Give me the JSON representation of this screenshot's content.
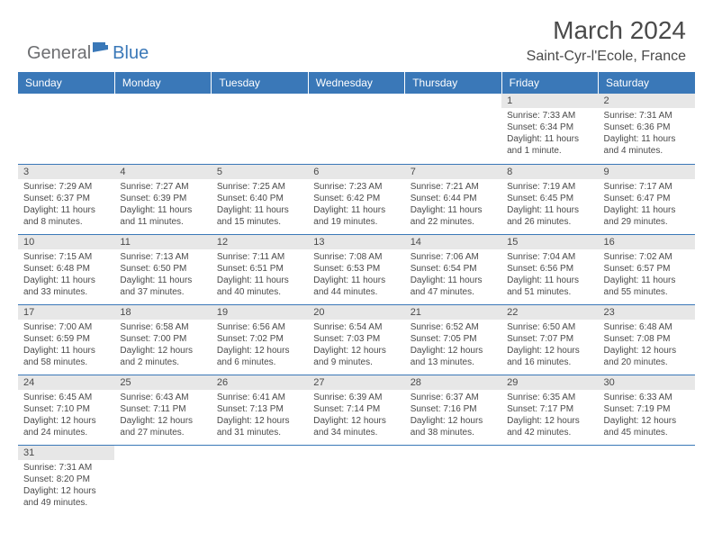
{
  "logo": {
    "part1": "General",
    "part2": "Blue"
  },
  "title": "March 2024",
  "location": "Saint-Cyr-l'Ecole, France",
  "colors": {
    "header_bg": "#3a78b8",
    "header_text": "#ffffff",
    "body_text": "#4a4a4a",
    "date_bg": "#e7e7e7",
    "logo_gray": "#6d6e71",
    "logo_blue": "#3a78b8",
    "page_bg": "#ffffff"
  },
  "day_names": [
    "Sunday",
    "Monday",
    "Tuesday",
    "Wednesday",
    "Thursday",
    "Friday",
    "Saturday"
  ],
  "weeks": [
    [
      {
        "date": "",
        "sunrise": "",
        "sunset": "",
        "daylight": ""
      },
      {
        "date": "",
        "sunrise": "",
        "sunset": "",
        "daylight": ""
      },
      {
        "date": "",
        "sunrise": "",
        "sunset": "",
        "daylight": ""
      },
      {
        "date": "",
        "sunrise": "",
        "sunset": "",
        "daylight": ""
      },
      {
        "date": "",
        "sunrise": "",
        "sunset": "",
        "daylight": ""
      },
      {
        "date": "1",
        "sunrise": "Sunrise: 7:33 AM",
        "sunset": "Sunset: 6:34 PM",
        "daylight": "Daylight: 11 hours and 1 minute."
      },
      {
        "date": "2",
        "sunrise": "Sunrise: 7:31 AM",
        "sunset": "Sunset: 6:36 PM",
        "daylight": "Daylight: 11 hours and 4 minutes."
      }
    ],
    [
      {
        "date": "3",
        "sunrise": "Sunrise: 7:29 AM",
        "sunset": "Sunset: 6:37 PM",
        "daylight": "Daylight: 11 hours and 8 minutes."
      },
      {
        "date": "4",
        "sunrise": "Sunrise: 7:27 AM",
        "sunset": "Sunset: 6:39 PM",
        "daylight": "Daylight: 11 hours and 11 minutes."
      },
      {
        "date": "5",
        "sunrise": "Sunrise: 7:25 AM",
        "sunset": "Sunset: 6:40 PM",
        "daylight": "Daylight: 11 hours and 15 minutes."
      },
      {
        "date": "6",
        "sunrise": "Sunrise: 7:23 AM",
        "sunset": "Sunset: 6:42 PM",
        "daylight": "Daylight: 11 hours and 19 minutes."
      },
      {
        "date": "7",
        "sunrise": "Sunrise: 7:21 AM",
        "sunset": "Sunset: 6:44 PM",
        "daylight": "Daylight: 11 hours and 22 minutes."
      },
      {
        "date": "8",
        "sunrise": "Sunrise: 7:19 AM",
        "sunset": "Sunset: 6:45 PM",
        "daylight": "Daylight: 11 hours and 26 minutes."
      },
      {
        "date": "9",
        "sunrise": "Sunrise: 7:17 AM",
        "sunset": "Sunset: 6:47 PM",
        "daylight": "Daylight: 11 hours and 29 minutes."
      }
    ],
    [
      {
        "date": "10",
        "sunrise": "Sunrise: 7:15 AM",
        "sunset": "Sunset: 6:48 PM",
        "daylight": "Daylight: 11 hours and 33 minutes."
      },
      {
        "date": "11",
        "sunrise": "Sunrise: 7:13 AM",
        "sunset": "Sunset: 6:50 PM",
        "daylight": "Daylight: 11 hours and 37 minutes."
      },
      {
        "date": "12",
        "sunrise": "Sunrise: 7:11 AM",
        "sunset": "Sunset: 6:51 PM",
        "daylight": "Daylight: 11 hours and 40 minutes."
      },
      {
        "date": "13",
        "sunrise": "Sunrise: 7:08 AM",
        "sunset": "Sunset: 6:53 PM",
        "daylight": "Daylight: 11 hours and 44 minutes."
      },
      {
        "date": "14",
        "sunrise": "Sunrise: 7:06 AM",
        "sunset": "Sunset: 6:54 PM",
        "daylight": "Daylight: 11 hours and 47 minutes."
      },
      {
        "date": "15",
        "sunrise": "Sunrise: 7:04 AM",
        "sunset": "Sunset: 6:56 PM",
        "daylight": "Daylight: 11 hours and 51 minutes."
      },
      {
        "date": "16",
        "sunrise": "Sunrise: 7:02 AM",
        "sunset": "Sunset: 6:57 PM",
        "daylight": "Daylight: 11 hours and 55 minutes."
      }
    ],
    [
      {
        "date": "17",
        "sunrise": "Sunrise: 7:00 AM",
        "sunset": "Sunset: 6:59 PM",
        "daylight": "Daylight: 11 hours and 58 minutes."
      },
      {
        "date": "18",
        "sunrise": "Sunrise: 6:58 AM",
        "sunset": "Sunset: 7:00 PM",
        "daylight": "Daylight: 12 hours and 2 minutes."
      },
      {
        "date": "19",
        "sunrise": "Sunrise: 6:56 AM",
        "sunset": "Sunset: 7:02 PM",
        "daylight": "Daylight: 12 hours and 6 minutes."
      },
      {
        "date": "20",
        "sunrise": "Sunrise: 6:54 AM",
        "sunset": "Sunset: 7:03 PM",
        "daylight": "Daylight: 12 hours and 9 minutes."
      },
      {
        "date": "21",
        "sunrise": "Sunrise: 6:52 AM",
        "sunset": "Sunset: 7:05 PM",
        "daylight": "Daylight: 12 hours and 13 minutes."
      },
      {
        "date": "22",
        "sunrise": "Sunrise: 6:50 AM",
        "sunset": "Sunset: 7:07 PM",
        "daylight": "Daylight: 12 hours and 16 minutes."
      },
      {
        "date": "23",
        "sunrise": "Sunrise: 6:48 AM",
        "sunset": "Sunset: 7:08 PM",
        "daylight": "Daylight: 12 hours and 20 minutes."
      }
    ],
    [
      {
        "date": "24",
        "sunrise": "Sunrise: 6:45 AM",
        "sunset": "Sunset: 7:10 PM",
        "daylight": "Daylight: 12 hours and 24 minutes."
      },
      {
        "date": "25",
        "sunrise": "Sunrise: 6:43 AM",
        "sunset": "Sunset: 7:11 PM",
        "daylight": "Daylight: 12 hours and 27 minutes."
      },
      {
        "date": "26",
        "sunrise": "Sunrise: 6:41 AM",
        "sunset": "Sunset: 7:13 PM",
        "daylight": "Daylight: 12 hours and 31 minutes."
      },
      {
        "date": "27",
        "sunrise": "Sunrise: 6:39 AM",
        "sunset": "Sunset: 7:14 PM",
        "daylight": "Daylight: 12 hours and 34 minutes."
      },
      {
        "date": "28",
        "sunrise": "Sunrise: 6:37 AM",
        "sunset": "Sunset: 7:16 PM",
        "daylight": "Daylight: 12 hours and 38 minutes."
      },
      {
        "date": "29",
        "sunrise": "Sunrise: 6:35 AM",
        "sunset": "Sunset: 7:17 PM",
        "daylight": "Daylight: 12 hours and 42 minutes."
      },
      {
        "date": "30",
        "sunrise": "Sunrise: 6:33 AM",
        "sunset": "Sunset: 7:19 PM",
        "daylight": "Daylight: 12 hours and 45 minutes."
      }
    ],
    [
      {
        "date": "31",
        "sunrise": "Sunrise: 7:31 AM",
        "sunset": "Sunset: 8:20 PM",
        "daylight": "Daylight: 12 hours and 49 minutes."
      },
      {
        "date": "",
        "sunrise": "",
        "sunset": "",
        "daylight": ""
      },
      {
        "date": "",
        "sunrise": "",
        "sunset": "",
        "daylight": ""
      },
      {
        "date": "",
        "sunrise": "",
        "sunset": "",
        "daylight": ""
      },
      {
        "date": "",
        "sunrise": "",
        "sunset": "",
        "daylight": ""
      },
      {
        "date": "",
        "sunrise": "",
        "sunset": "",
        "daylight": ""
      },
      {
        "date": "",
        "sunrise": "",
        "sunset": "",
        "daylight": ""
      }
    ]
  ]
}
